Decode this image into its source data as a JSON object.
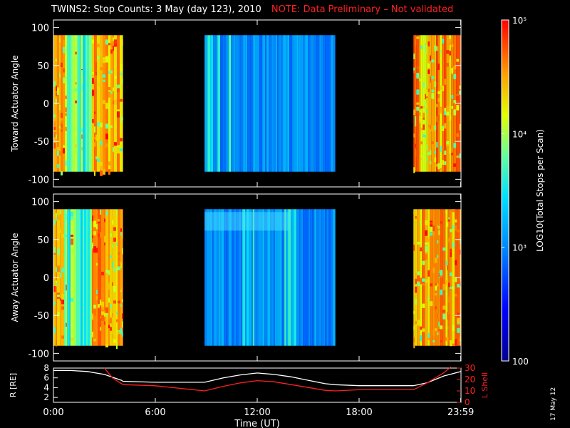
{
  "title": "TWINS2: Stop Counts:  3 May (day 123), 2010",
  "note": "NOTE: Data Preliminary – Not validated",
  "date_stamp": "17 May 12",
  "colorbar": {
    "label": "LOG10(Total Stops per Scan)",
    "ticks": [
      "100",
      "10³",
      "10⁴",
      "10⁵"
    ],
    "range": [
      100,
      100000
    ],
    "scale": "log"
  },
  "chart_data": [
    {
      "type": "heatmap",
      "ylabel": "Toward Actuator Angle",
      "ylim": [
        -110,
        110
      ],
      "yticks": [
        -100,
        -50,
        0,
        50,
        100
      ],
      "x_hours": [
        0,
        24
      ],
      "coverage_hours": [
        [
          0,
          4.1
        ],
        [
          8.9,
          16.6
        ],
        [
          21.2,
          24
        ]
      ],
      "angle_range": [
        -90,
        90
      ],
      "dominant_color": [
        [
          "orange-red",
          "light-blue",
          "red-orange"
        ]
      ]
    },
    {
      "type": "heatmap",
      "ylabel": "Away Actuator Angle",
      "ylim": [
        -110,
        110
      ],
      "yticks": [
        -100,
        -50,
        0,
        50,
        100
      ],
      "x_hours": [
        0,
        24
      ],
      "coverage_hours": [
        [
          0,
          4.1
        ],
        [
          8.9,
          16.6
        ],
        [
          21.2,
          24
        ]
      ],
      "angle_range": [
        -90,
        90
      ],
      "dominant_color": [
        [
          "yellow-red",
          "light-blue",
          "red-orange"
        ]
      ]
    },
    {
      "type": "line",
      "xlabel": "Time (UT)",
      "x_ticklabels": [
        "0:00",
        "6:00",
        "12:00",
        "18:00",
        "23:59"
      ],
      "x_tick_hours": [
        0,
        6,
        12,
        18,
        23.983
      ],
      "left_axis": {
        "label": "R [RE]",
        "ylim": [
          1,
          8
        ],
        "ticks": [
          2,
          4,
          6,
          8
        ],
        "color": "#ffffff"
      },
      "right_axis": {
        "label": "L Shell",
        "ylim": [
          0,
          30
        ],
        "ticks": [
          0,
          10,
          20,
          30
        ],
        "color": "#ff2020"
      },
      "series": [
        {
          "axis": "left",
          "color": "#ffffff",
          "x": [
            0,
            1,
            2,
            3,
            4,
            4.1,
            6,
            8.9,
            10,
            11,
            12,
            13,
            14,
            15,
            16,
            16.6,
            18,
            21.2,
            22,
            23,
            24
          ],
          "y": [
            7.5,
            7.5,
            7.3,
            6.7,
            5.5,
            5.3,
            5.1,
            5.1,
            6.0,
            6.6,
            7.0,
            6.7,
            6.2,
            5.5,
            4.8,
            4.6,
            4.4,
            4.4,
            5.0,
            6.4,
            7.3
          ]
        },
        {
          "axis": "right",
          "color": "#ff2020",
          "x": [
            3.0,
            3.5,
            4.1,
            6,
            8.9,
            10,
            11,
            12,
            13,
            14,
            15,
            16,
            16.6,
            18,
            21.2,
            22,
            23,
            23.4
          ],
          "y": [
            30,
            21,
            15.5,
            14.5,
            10,
            14,
            17,
            19,
            18,
            15.5,
            13,
            10.5,
            10,
            11,
            11,
            17,
            26,
            31
          ]
        }
      ]
    }
  ]
}
